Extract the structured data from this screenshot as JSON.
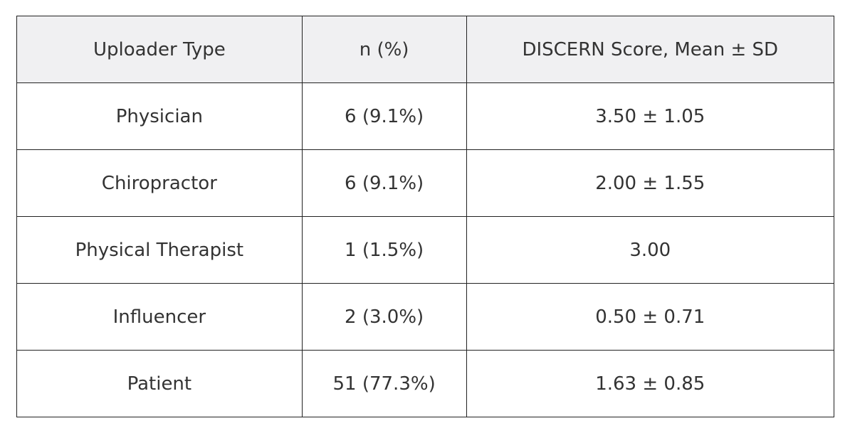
{
  "table": {
    "header": [
      "Uploader Type",
      "n (%)",
      "DISCERN Score, Mean ± SD"
    ],
    "rows": [
      [
        "Physician",
        "6 (9.1%)",
        "3.50 ± 1.05"
      ],
      [
        "Chiropractor",
        "6 (9.1%)",
        "2.00 ± 1.55"
      ],
      [
        "Physical Therapist",
        "1 (1.5%)",
        "3.00"
      ],
      [
        "Influencer",
        "2 (3.0%)",
        "0.50 ± 0.71"
      ],
      [
        "Patient",
        "51 (77.3%)",
        "1.63 ± 0.85"
      ]
    ]
  }
}
